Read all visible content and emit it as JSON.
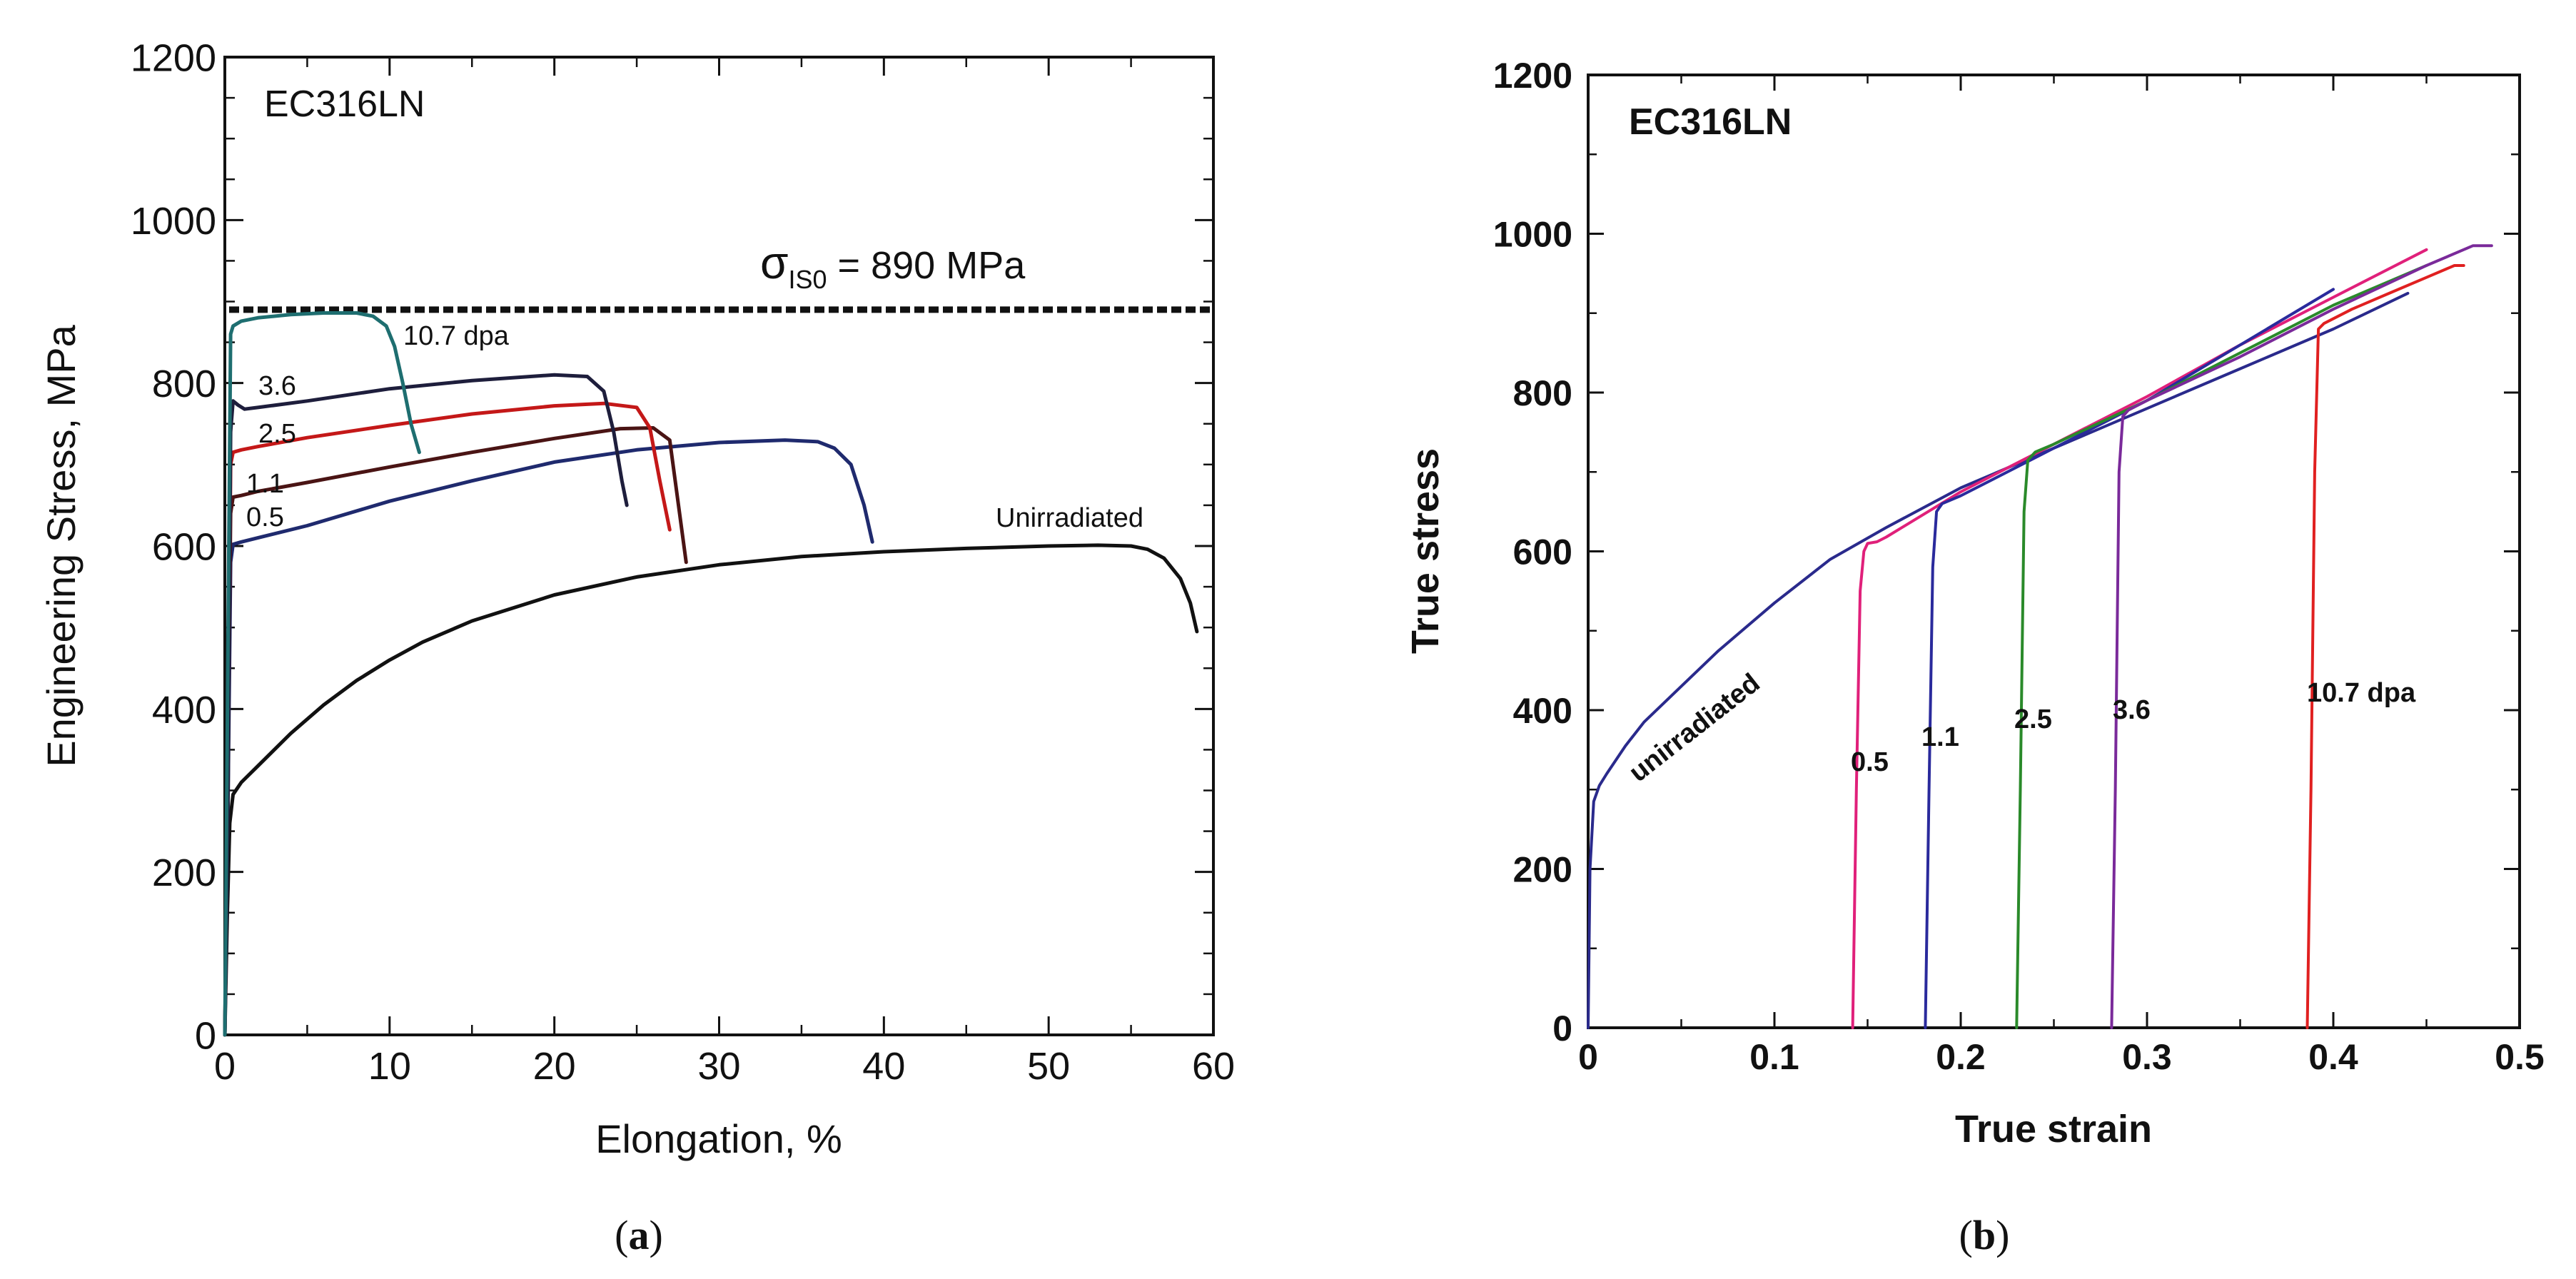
{
  "chart_data": [
    {
      "type": "line",
      "panel": "(a)",
      "caption_letter": "a",
      "title": "EC316LN",
      "xlabel": "Elongation, %",
      "ylabel": "Engineering Stress, MPa",
      "xlim": [
        0,
        60
      ],
      "ylim": [
        0,
        1200
      ],
      "xticks": [
        0,
        10,
        20,
        30,
        40,
        50,
        60
      ],
      "yticks": [
        0,
        200,
        400,
        600,
        800,
        1000,
        1200
      ],
      "grid": false,
      "reference_line": {
        "y": 890,
        "sigma": "σ",
        "subscript": "IS0",
        "text": " = 890 MPa",
        "style": "dashed"
      },
      "series": [
        {
          "name": "Unirradiated",
          "label": "Unirradiated",
          "color": "#111111",
          "x": [
            0,
            0.15,
            0.3,
            0.5,
            1,
            2,
            4,
            6,
            8,
            10,
            12,
            15,
            20,
            25,
            30,
            35,
            40,
            45,
            50,
            53,
            55,
            56,
            57,
            58,
            58.6,
            59
          ],
          "y": [
            0,
            150,
            260,
            295,
            310,
            330,
            370,
            405,
            435,
            460,
            482,
            508,
            540,
            562,
            577,
            587,
            593,
            597,
            600,
            601,
            600,
            596,
            585,
            560,
            530,
            495
          ]
        },
        {
          "name": "0.5",
          "label": "0.5",
          "color": "#1f2a6e",
          "x": [
            0,
            0.2,
            0.35,
            0.5,
            1,
            2,
            5,
            10,
            15,
            20,
            25,
            30,
            34,
            36,
            37,
            38,
            38.8,
            39.3
          ],
          "y": [
            0,
            300,
            580,
            602,
            605,
            610,
            625,
            655,
            680,
            703,
            718,
            727,
            730,
            728,
            720,
            700,
            650,
            605
          ]
        },
        {
          "name": "1.1",
          "label": "1.1",
          "color": "#4a1414",
          "x": [
            0,
            0.2,
            0.35,
            0.5,
            1,
            2,
            5,
            10,
            15,
            20,
            24,
            26,
            27,
            27.6,
            28
          ],
          "y": [
            0,
            350,
            640,
            660,
            662,
            667,
            678,
            697,
            715,
            732,
            744,
            745,
            730,
            640,
            580
          ]
        },
        {
          "name": "2.5",
          "label": "2.5",
          "color": "#c41818",
          "x": [
            0,
            0.2,
            0.35,
            0.5,
            1,
            2,
            5,
            10,
            15,
            20,
            23,
            25,
            25.8,
            26.4,
            27
          ],
          "y": [
            0,
            350,
            700,
            715,
            718,
            722,
            733,
            748,
            762,
            772,
            775,
            770,
            745,
            680,
            620
          ]
        },
        {
          "name": "3.6",
          "label": "3.6",
          "color": "#1e1e3c",
          "x": [
            0,
            0.2,
            0.35,
            0.5,
            0.8,
            1.2,
            2,
            5,
            10,
            15,
            20,
            22,
            23,
            23.6,
            24.1,
            24.4
          ],
          "y": [
            0,
            300,
            740,
            778,
            773,
            768,
            770,
            778,
            793,
            803,
            810,
            808,
            790,
            740,
            680,
            650
          ]
        },
        {
          "name": "10.7 dpa",
          "label": "10.7 dpa",
          "color": "#1e6e70",
          "x": [
            0,
            0.2,
            0.35,
            0.5,
            1,
            2,
            4,
            6,
            8,
            9,
            9.8,
            10.3,
            10.8,
            11.3,
            11.8
          ],
          "y": [
            0,
            500,
            860,
            870,
            876,
            880,
            884,
            886,
            886,
            882,
            870,
            845,
            800,
            750,
            715
          ]
        }
      ]
    },
    {
      "type": "line",
      "panel": "(b)",
      "caption_letter": "b",
      "title": "EC316LN",
      "xlabel": "True strain",
      "ylabel": "True stress",
      "xlim": [
        0,
        0.5
      ],
      "ylim": [
        0,
        1200
      ],
      "xticks": [
        0,
        0.1,
        0.2,
        0.3,
        0.4,
        0.5
      ],
      "xtick_labels": [
        "0",
        "0.1",
        "0.2",
        "0.3",
        "0.4",
        "0.5"
      ],
      "yticks": [
        0,
        200,
        400,
        600,
        800,
        1000,
        1200
      ],
      "grid": false,
      "series": [
        {
          "name": "unirradiated",
          "label": "unirradiated",
          "color": "#2a2a8c",
          "x": [
            0,
            0.001,
            0.003,
            0.006,
            0.01,
            0.02,
            0.03,
            0.05,
            0.07,
            0.1,
            0.13,
            0.16,
            0.2,
            0.25,
            0.3,
            0.35,
            0.4,
            0.44
          ],
          "y": [
            0,
            200,
            285,
            305,
            320,
            355,
            385,
            430,
            475,
            535,
            590,
            630,
            680,
            730,
            780,
            830,
            880,
            925
          ]
        },
        {
          "name": "0.5",
          "label": "0.5",
          "color": "#e0207a",
          "x": [
            0.142,
            0.144,
            0.146,
            0.148,
            0.15,
            0.155,
            0.16,
            0.2,
            0.25,
            0.3,
            0.35,
            0.4,
            0.45
          ],
          "y": [
            0,
            300,
            550,
            600,
            610,
            612,
            618,
            675,
            735,
            795,
            860,
            920,
            980
          ]
        },
        {
          "name": "1.1",
          "label": "1.1",
          "color": "#2a2a9c",
          "x": [
            0.181,
            0.183,
            0.185,
            0.187,
            0.19,
            0.2,
            0.25,
            0.3,
            0.35,
            0.4
          ],
          "y": [
            0,
            300,
            580,
            650,
            660,
            670,
            730,
            790,
            860,
            930
          ]
        },
        {
          "name": "2.5",
          "label": "2.5",
          "color": "#2a8a2a",
          "x": [
            0.23,
            0.232,
            0.234,
            0.236,
            0.24,
            0.25,
            0.3,
            0.35,
            0.4,
            0.45
          ],
          "y": [
            0,
            300,
            650,
            715,
            725,
            735,
            790,
            850,
            910,
            960
          ]
        },
        {
          "name": "3.6",
          "label": "3.6",
          "color": "#7a2a9a",
          "x": [
            0.281,
            0.283,
            0.285,
            0.287,
            0.29,
            0.3,
            0.35,
            0.4,
            0.45,
            0.475,
            0.485
          ],
          "y": [
            0,
            300,
            700,
            770,
            778,
            790,
            845,
            905,
            960,
            985,
            985
          ]
        },
        {
          "name": "10.7 dpa",
          "label": "10.7 dpa",
          "color": "#e02020",
          "x": [
            0.386,
            0.388,
            0.39,
            0.392,
            0.395,
            0.41,
            0.43,
            0.45,
            0.465,
            0.47
          ],
          "y": [
            0,
            300,
            700,
            880,
            887,
            905,
            925,
            945,
            960,
            960
          ]
        }
      ]
    }
  ]
}
